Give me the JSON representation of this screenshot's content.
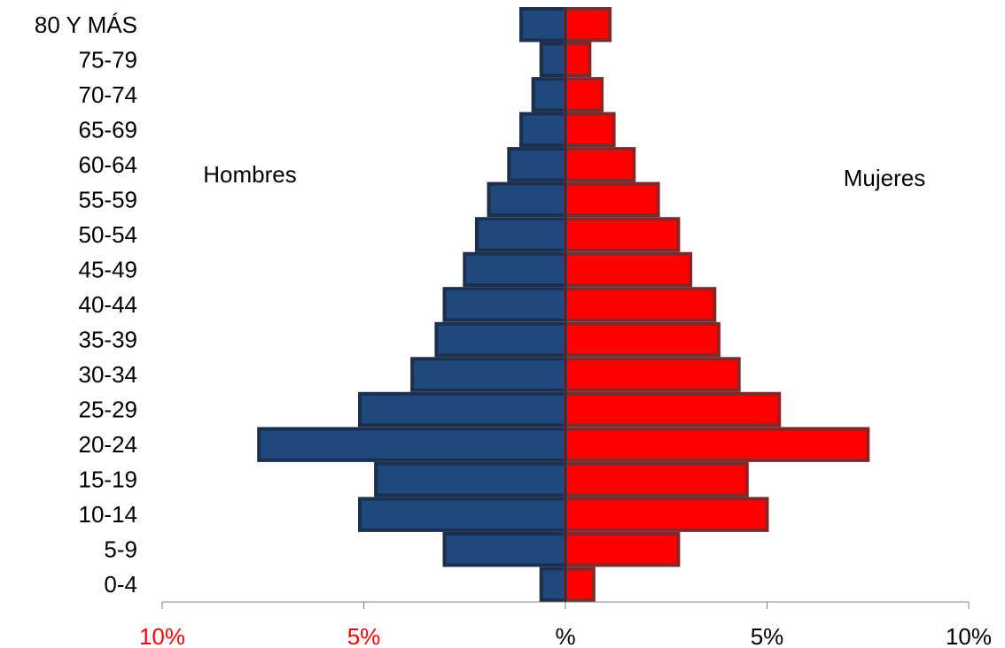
{
  "chart_data": {
    "type": "bar",
    "subtype": "population-pyramid",
    "categories": [
      "0-4",
      "5-9",
      "10-14",
      "15-19",
      "20-24",
      "25-29",
      "30-34",
      "35-39",
      "40-44",
      "45-49",
      "50-54",
      "55-59",
      "60-64",
      "65-69",
      "70-74",
      "75-79",
      "80 Y MÁS"
    ],
    "series": [
      {
        "name": "Hombres",
        "side": "left",
        "color": "#1F497D",
        "border": "#1B2F4E",
        "values": [
          0.6,
          3.0,
          5.1,
          4.7,
          7.6,
          5.1,
          3.8,
          3.2,
          3.0,
          2.5,
          2.2,
          1.9,
          1.4,
          1.1,
          0.8,
          0.6,
          1.1
        ]
      },
      {
        "name": "Mujeres",
        "side": "right",
        "color": "#FF0000",
        "border": "#7F2A2A",
        "values": [
          0.7,
          2.8,
          5.0,
          4.5,
          7.5,
          5.3,
          4.3,
          3.8,
          3.7,
          3.1,
          2.8,
          2.3,
          1.7,
          1.2,
          0.9,
          0.6,
          1.1
        ]
      }
    ],
    "x_ticks": [
      {
        "value": -10,
        "label": "10%",
        "color": "#FF0000"
      },
      {
        "value": -5,
        "label": "5%",
        "color": "#FF0000"
      },
      {
        "value": 0,
        "label": "%",
        "color": "#000000"
      },
      {
        "value": 5,
        "label": "5%",
        "color": "#000000"
      },
      {
        "value": 10,
        "label": "10%",
        "color": "#000000"
      }
    ],
    "xlim": [
      -10,
      10
    ],
    "annotations": [
      "Hombres",
      "Mujeres"
    ],
    "grid": false
  }
}
